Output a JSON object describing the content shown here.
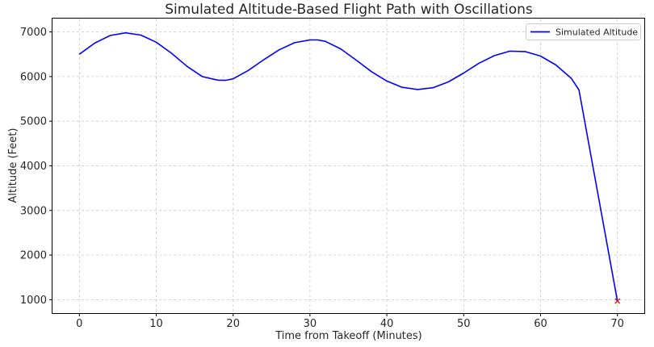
{
  "chart_data": {
    "type": "line",
    "title": "Simulated Altitude-Based Flight Path with Oscillations",
    "xlabel": "Time from Takeoff (Minutes)",
    "ylabel": "Altitude (Feet)",
    "xlim": [
      -3.5,
      73.5
    ],
    "ylim": [
      700,
      7300
    ],
    "x_ticks": [
      0,
      10,
      20,
      30,
      40,
      50,
      60,
      70
    ],
    "y_ticks": [
      1000,
      2000,
      3000,
      4000,
      5000,
      6000,
      7000
    ],
    "grid": true,
    "legend_position": "top-right",
    "series": [
      {
        "name": "Simulated Altitude",
        "color": "#0000ff",
        "x": [
          0,
          2,
          4,
          6,
          8,
          10,
          12,
          14,
          16,
          18,
          19,
          20,
          22,
          24,
          26,
          28,
          30,
          31,
          32,
          34,
          36,
          38,
          40,
          42,
          44,
          46,
          48,
          50,
          52,
          54,
          56,
          58,
          60,
          62,
          64,
          65,
          70
        ],
        "y": [
          6500,
          6750,
          6920,
          6980,
          6930,
          6770,
          6520,
          6230,
          6000,
          5920,
          5915,
          5950,
          6140,
          6380,
          6600,
          6760,
          6820,
          6820,
          6790,
          6620,
          6370,
          6110,
          5900,
          5760,
          5710,
          5750,
          5880,
          6080,
          6300,
          6470,
          6570,
          6560,
          6460,
          6260,
          5960,
          5700,
          970
        ]
      }
    ],
    "markers": [
      {
        "x": 70,
        "y": 970,
        "symbol": "x",
        "color": "#d62728"
      }
    ]
  }
}
